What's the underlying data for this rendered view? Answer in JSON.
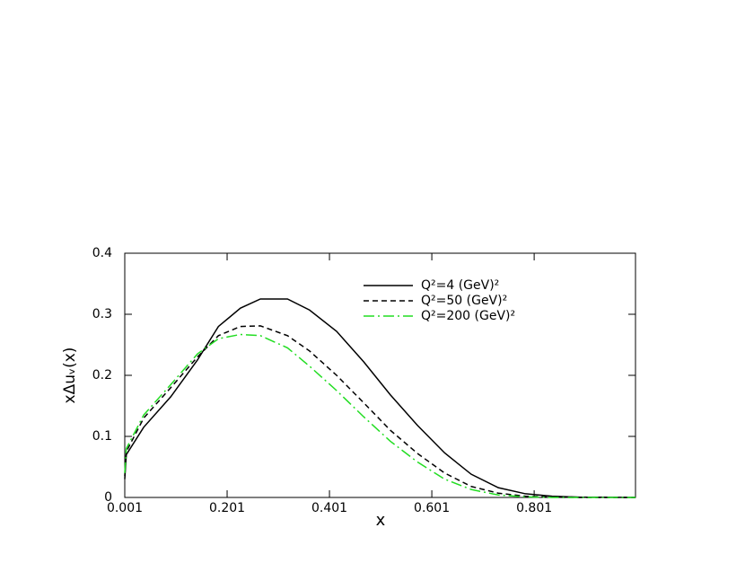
{
  "chart_data": {
    "type": "line",
    "x_label": "x",
    "y_label": "xΔuᵥ(x)",
    "x": [
      0.001,
      0.004,
      0.038,
      0.091,
      0.143,
      0.184,
      0.227,
      0.266,
      0.319,
      0.362,
      0.415,
      0.468,
      0.52,
      0.573,
      0.626,
      0.678,
      0.731,
      0.784,
      0.836,
      0.889,
      0.999
    ],
    "series": [
      {
        "name": "Q²=4 (GeV)²",
        "color": "#000000",
        "dash": "solid",
        "values": [
          0.03,
          0.07,
          0.115,
          0.165,
          0.225,
          0.28,
          0.31,
          0.325,
          0.325,
          0.307,
          0.272,
          0.222,
          0.168,
          0.118,
          0.073,
          0.038,
          0.016,
          0.006,
          0.002,
          0.0005,
          0
        ]
      },
      {
        "name": "Q²=50 (GeV)²",
        "color": "#000000",
        "dash": "dashed",
        "values": [
          0.035,
          0.075,
          0.13,
          0.18,
          0.23,
          0.265,
          0.28,
          0.281,
          0.265,
          0.24,
          0.2,
          0.155,
          0.11,
          0.072,
          0.04,
          0.018,
          0.007,
          0.002,
          0.0005,
          0,
          0
        ]
      },
      {
        "name": "Q²=200 (GeV)²",
        "color": "#22dd22",
        "dash": "dashdot",
        "values": [
          0.04,
          0.08,
          0.135,
          0.185,
          0.235,
          0.26,
          0.267,
          0.265,
          0.245,
          0.215,
          0.175,
          0.132,
          0.092,
          0.058,
          0.03,
          0.013,
          0.004,
          0.001,
          0,
          0,
          0
        ]
      }
    ],
    "xlim": [
      0.001,
      0.999
    ],
    "xticks": [
      0.001,
      0.201,
      0.401,
      0.601,
      0.801
    ],
    "ylim": [
      0,
      0.4
    ],
    "yticks": [
      0,
      0.1,
      0.2,
      0.3,
      0.4
    ],
    "legend": "upper right"
  }
}
